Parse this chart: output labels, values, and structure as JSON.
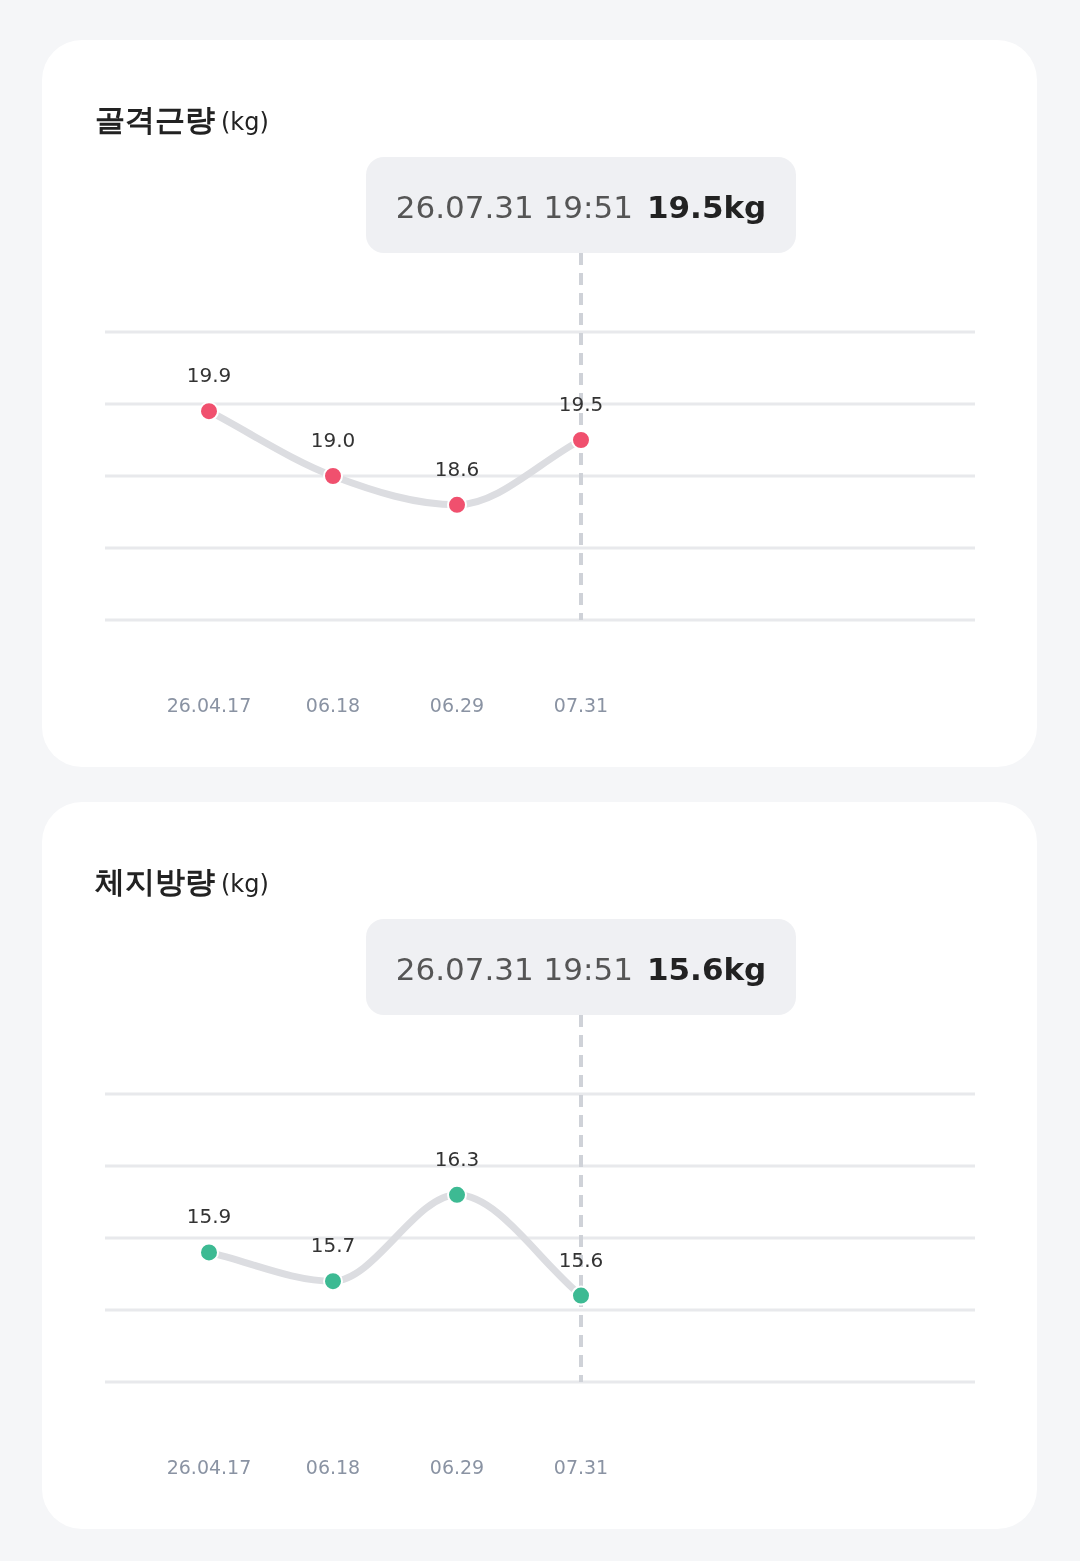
{
  "chart_data": [
    {
      "type": "line",
      "title": "골격근량 (kg)",
      "categories": [
        "26.04.17",
        "06.18",
        "06.29",
        "07.31"
      ],
      "series": [
        {
          "color": "#f0506e",
          "values": [
            19.9,
            19.0,
            18.6,
            19.5
          ],
          "value_labels": [
            "19.9",
            "19.0",
            "18.6",
            "19.5"
          ]
        }
      ],
      "ylim": [
        17,
        21
      ],
      "yticks": [
        {
          "value": 17,
          "label": null
        },
        {
          "value": 18,
          "label": null
        },
        {
          "value": 19,
          "label": null
        },
        {
          "value": 20,
          "label": null
        },
        {
          "value": 21,
          "label": null
        }
      ],
      "grid": "y",
      "marker": "circle",
      "ref_lines": [
        {
          "axis": "x",
          "value": "07.31",
          "label": "26.07.31 19:51 19.5kg",
          "color": "#cfd2d8",
          "line_style": "dashed"
        }
      ]
    },
    {
      "type": "line",
      "title": "체지방량 (kg)",
      "categories": [
        "26.04.17",
        "06.18",
        "06.29",
        "07.31"
      ],
      "series": [
        {
          "color": "#3dba93",
          "values": [
            15.9,
            15.7,
            16.3,
            15.6
          ],
          "value_labels": [
            "15.9",
            "15.7",
            "16.3",
            "15.6"
          ]
        }
      ],
      "ylim": [
        15,
        17
      ],
      "yticks": [
        {
          "value": 15,
          "label": null
        },
        {
          "value": 15.5,
          "label": null
        },
        {
          "value": 16,
          "label": null
        },
        {
          "value": 16.5,
          "label": null
        },
        {
          "value": 17,
          "label": null
        }
      ],
      "grid": "y",
      "marker": "circle",
      "ref_lines": [
        {
          "axis": "x",
          "value": "07.31",
          "label": "26.07.31 19:51 15.6kg",
          "color": "#cfd2d8",
          "line_style": "dashed"
        }
      ]
    }
  ]
}
